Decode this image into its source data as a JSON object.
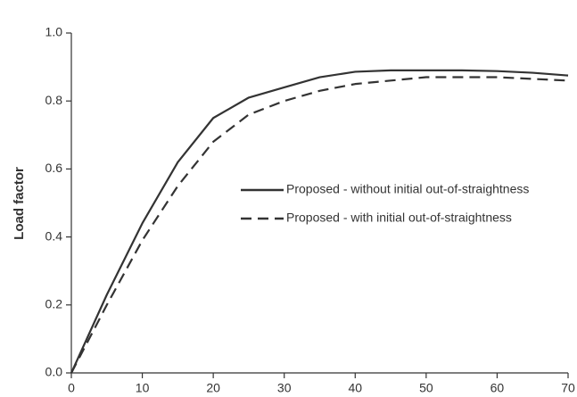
{
  "chart_data": {
    "type": "line",
    "y_label": "Load factor",
    "x": [
      0,
      5,
      10,
      15,
      20,
      25,
      30,
      35,
      40,
      45,
      50,
      55,
      60,
      65,
      70
    ],
    "series": [
      {
        "name": "Proposed - without initial out-of-straightness",
        "color": "#333333",
        "dash": "solid",
        "values": [
          0,
          0.23,
          0.44,
          0.62,
          0.75,
          0.81,
          0.84,
          0.87,
          0.886,
          0.89,
          0.89,
          0.89,
          0.888,
          0.883,
          0.875
        ]
      },
      {
        "name": "Proposed - with initial out-of-straightness",
        "color": "#333333",
        "dash": "dashed",
        "values": [
          0,
          0.2,
          0.39,
          0.55,
          0.68,
          0.76,
          0.8,
          0.83,
          0.85,
          0.86,
          0.87,
          0.87,
          0.87,
          0.865,
          0.86
        ]
      }
    ],
    "xlim": [
      0,
      70
    ],
    "xticks": [
      0,
      10,
      20,
      30,
      40,
      50,
      60,
      70
    ],
    "ylim": [
      0,
      1
    ],
    "yticks": [
      {
        "value": 0,
        "label": "0.0"
      },
      0.2,
      0.4,
      0.6,
      0.8,
      {
        "value": 1,
        "label": "1.0"
      }
    ]
  }
}
